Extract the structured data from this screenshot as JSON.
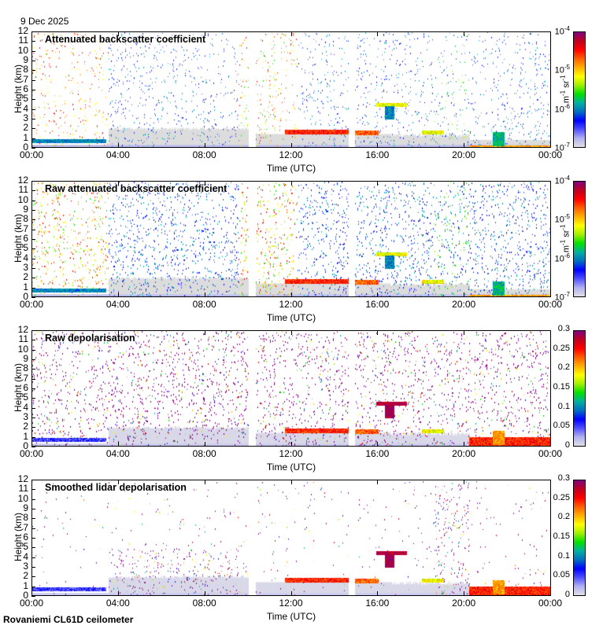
{
  "date": "9 Dec 2025",
  "footer": "Rovaniemi CL61D ceilometer",
  "colormap": [
    "#e0e0e8",
    "#b0b0f0",
    "#5050ff",
    "#0000ff",
    "#0070c0",
    "#00b0a0",
    "#00e000",
    "#a0f000",
    "#ffff00",
    "#ffb000",
    "#ff6000",
    "#ff0000",
    "#c00020",
    "#800080"
  ],
  "chart_data": [
    {
      "type": "heatmap",
      "title": "Attenuated backscatter coefficient",
      "xlabel": "Time (UTC)",
      "ylabel": "Height (km)",
      "x_ticks": [
        "00:00",
        "04:00",
        "08:00",
        "12:00",
        "16:00",
        "20:00",
        "00:00"
      ],
      "y_ticks": [
        "0",
        "1",
        "2",
        "3",
        "4",
        "5",
        "6",
        "7",
        "8",
        "9",
        "10",
        "11",
        "12"
      ],
      "xlim": [
        0,
        24
      ],
      "ylim": [
        0,
        12
      ],
      "colorbar": {
        "scale": "log",
        "ticks": [
          "10-7",
          "10-6",
          "10-5",
          "10-4"
        ],
        "range": [
          1e-07,
          0.0001
        ],
        "unit": "m-1 sr-1"
      },
      "gaps_hours": [
        [
          10.0,
          10.3
        ],
        [
          14.6,
          14.9
        ]
      ]
    },
    {
      "type": "heatmap",
      "title": "Raw attenuated backscatter coefficient",
      "xlabel": "Time (UTC)",
      "ylabel": "Height (km)",
      "x_ticks": [
        "00:00",
        "04:00",
        "08:00",
        "12:00",
        "16:00",
        "20:00",
        "00:00"
      ],
      "y_ticks": [
        "0",
        "1",
        "2",
        "3",
        "4",
        "5",
        "6",
        "7",
        "8",
        "9",
        "10",
        "11",
        "12"
      ],
      "xlim": [
        0,
        24
      ],
      "ylim": [
        0,
        12
      ],
      "colorbar": {
        "scale": "log",
        "ticks": [
          "10-7",
          "10-6",
          "10-5",
          "10-4"
        ],
        "range": [
          1e-07,
          0.0001
        ],
        "unit": "m-1 sr-1"
      },
      "gaps_hours": [
        [
          10.0,
          10.3
        ],
        [
          14.6,
          14.9
        ]
      ]
    },
    {
      "type": "heatmap",
      "title": "Raw depolarisation",
      "xlabel": "Time (UTC)",
      "ylabel": "Height (km)",
      "x_ticks": [
        "00:00",
        "04:00",
        "08:00",
        "12:00",
        "16:00",
        "20:00",
        "00:00"
      ],
      "y_ticks": [
        "0",
        "1",
        "2",
        "3",
        "4",
        "5",
        "6",
        "7",
        "8",
        "9",
        "10",
        "11",
        "12"
      ],
      "xlim": [
        0,
        24
      ],
      "ylim": [
        0,
        12
      ],
      "colorbar": {
        "scale": "linear",
        "ticks": [
          "0",
          "0.05",
          "0.1",
          "0.15",
          "0.2",
          "0.25",
          "0.3"
        ],
        "range": [
          0,
          0.3
        ],
        "unit": ""
      },
      "gaps_hours": [
        [
          10.0,
          10.3
        ],
        [
          14.6,
          14.9
        ]
      ]
    },
    {
      "type": "heatmap",
      "title": "Smoothed lidar depolarisation",
      "xlabel": "Time (UTC)",
      "ylabel": "Height (km)",
      "x_ticks": [
        "00:00",
        "04:00",
        "08:00",
        "12:00",
        "16:00",
        "20:00",
        "00:00"
      ],
      "y_ticks": [
        "0",
        "1",
        "2",
        "3",
        "4",
        "5",
        "6",
        "7",
        "8",
        "9",
        "10",
        "11",
        "12"
      ],
      "xlim": [
        0,
        24
      ],
      "ylim": [
        0,
        12
      ],
      "colorbar": {
        "scale": "linear",
        "ticks": [
          "0",
          "0.05",
          "0.1",
          "0.15",
          "0.2",
          "0.25",
          "0.3"
        ],
        "range": [
          0,
          0.3
        ],
        "unit": ""
      },
      "gaps_hours": [
        [
          10.0,
          10.3
        ],
        [
          14.6,
          14.9
        ]
      ]
    }
  ]
}
